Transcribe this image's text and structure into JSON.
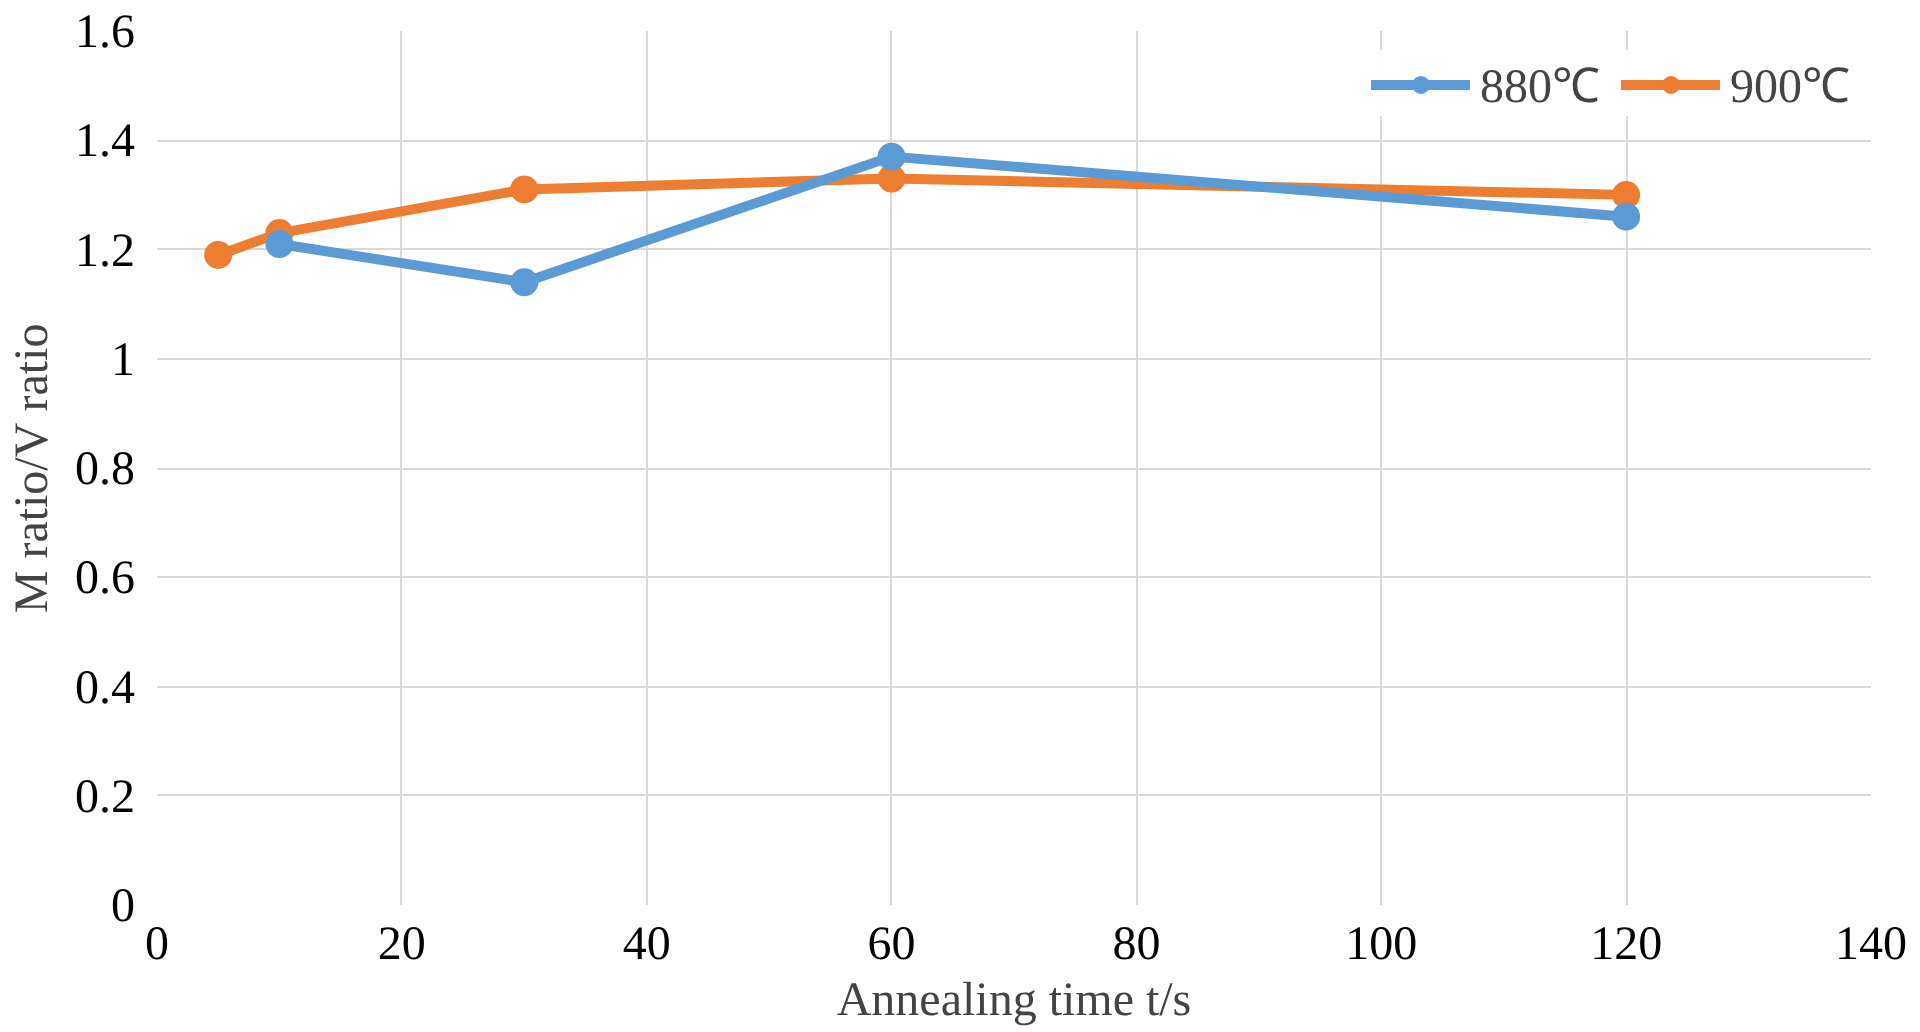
{
  "chart_data": {
    "type": "line",
    "xlabel": "Annealing time t/s",
    "ylabel": "M ratio/V ratio",
    "xlim": [
      0,
      140
    ],
    "xticks": [
      0,
      20,
      40,
      60,
      80,
      100,
      120,
      140
    ],
    "ylim": [
      0,
      1.6
    ],
    "yticks": [
      0,
      0.2,
      0.4,
      0.6,
      0.8,
      1,
      1.2,
      1.4,
      1.6
    ],
    "grid": true,
    "legend": "top right",
    "marker": "circle",
    "line_style": "solid",
    "series": [
      {
        "name": "880℃",
        "color": "#5b9bd5",
        "x": [
          10,
          30,
          60,
          120
        ],
        "values": [
          1.21,
          1.14,
          1.37,
          1.26
        ]
      },
      {
        "name": "900℃",
        "color": "#ed7d31",
        "x": [
          5,
          10,
          30,
          60,
          120
        ],
        "values": [
          1.19,
          1.23,
          1.31,
          1.33,
          1.3
        ]
      }
    ]
  }
}
